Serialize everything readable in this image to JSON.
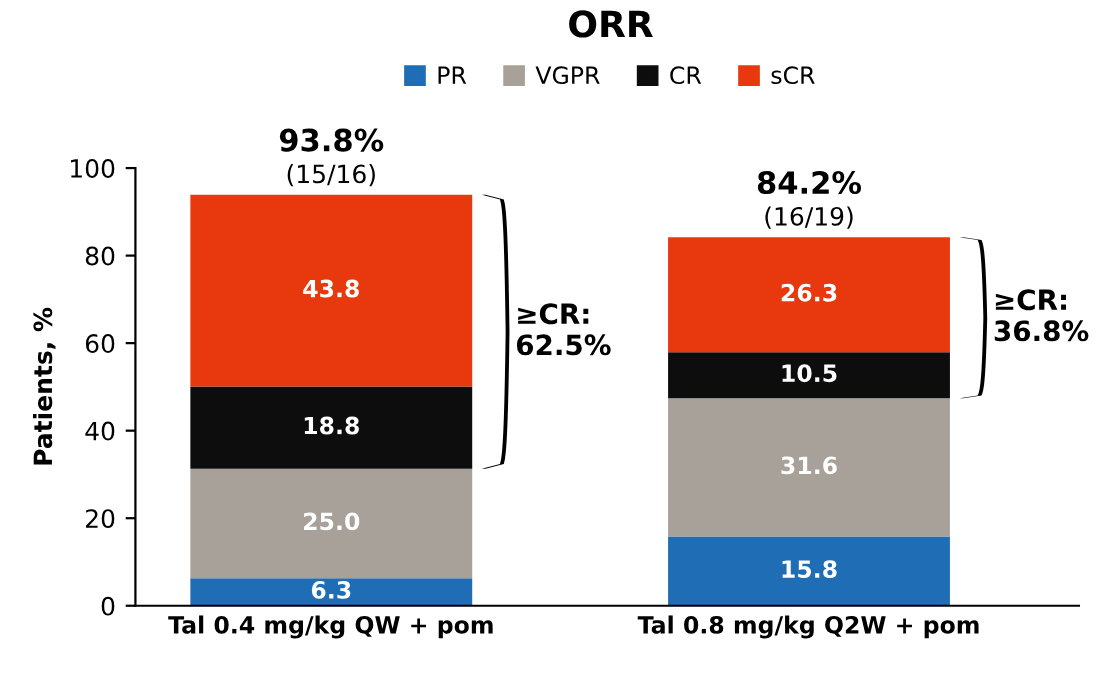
{
  "chart_data": {
    "type": "bar",
    "title": "ORR",
    "ylabel": "Patients, %",
    "stacked": true,
    "categories": [
      "Tal 0.4 mg/kg QW + pom",
      "Tal 0.8 mg/kg Q2W + pom"
    ],
    "series": [
      {
        "name": "PR",
        "color": "#1f6db4",
        "values": [
          6.3,
          15.8
        ],
        "value_labels": [
          "6.3",
          "15.8"
        ]
      },
      {
        "name": "VGPR",
        "color": "#a8a199",
        "values": [
          25.0,
          31.6
        ],
        "value_labels": [
          "25.0",
          "31.6"
        ]
      },
      {
        "name": "CR",
        "color": "#0d0d0d",
        "values": [
          18.8,
          10.5
        ],
        "value_labels": [
          "18.8",
          "10.5"
        ]
      },
      {
        "name": "sCR",
        "color": "#e8380d",
        "values": [
          43.8,
          26.3
        ],
        "value_labels": [
          "43.8",
          "26.3"
        ]
      }
    ],
    "ylim": [
      0,
      100
    ],
    "yticks": [
      0,
      20,
      40,
      60,
      80,
      100
    ],
    "grid": false,
    "legend": "top",
    "totals": [
      "93.8%\n(15/16)",
      "84.2%\n(16/19)"
    ],
    "annotations": [
      "≥CR:\n62.5%",
      "≥CR:\n36.8%"
    ]
  }
}
